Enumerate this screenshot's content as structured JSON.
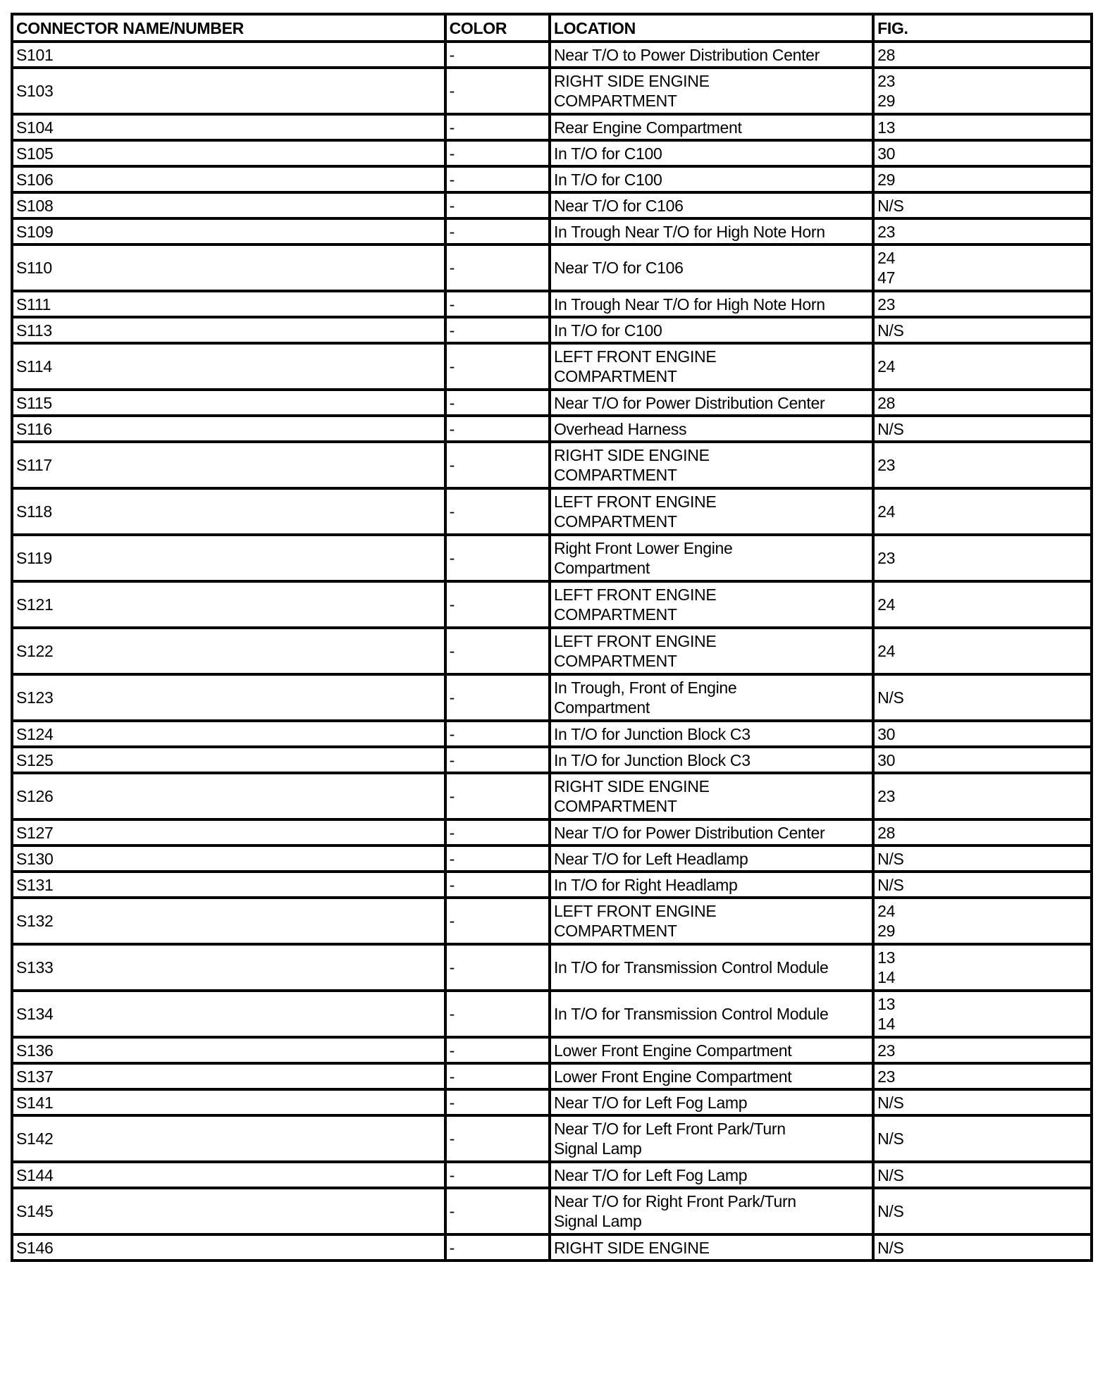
{
  "headers": [
    "CONNECTOR NAME/NUMBER",
    "COLOR",
    "LOCATION",
    "FIG."
  ],
  "rows": [
    {
      "name": "S101",
      "color": "-",
      "location": [
        "Near T/O to Power Distribution Center"
      ],
      "fig": [
        "28"
      ]
    },
    {
      "name": "S103",
      "color": "-",
      "location": [
        "RIGHT SIDE ENGINE",
        "COMPARTMENT"
      ],
      "fig": [
        "23",
        "29"
      ]
    },
    {
      "name": "S104",
      "color": "-",
      "location": [
        "Rear Engine Compartment"
      ],
      "fig": [
        "13"
      ]
    },
    {
      "name": "S105",
      "color": "-",
      "location": [
        "In T/O for C100"
      ],
      "fig": [
        "30"
      ]
    },
    {
      "name": "S106",
      "color": "-",
      "location": [
        "In T/O for C100"
      ],
      "fig": [
        "29"
      ]
    },
    {
      "name": "S108",
      "color": "-",
      "location": [
        "Near T/O for C106"
      ],
      "fig": [
        "N/S"
      ]
    },
    {
      "name": "S109",
      "color": "-",
      "location": [
        "In Trough Near T/O for High Note Horn"
      ],
      "fig": [
        "23"
      ]
    },
    {
      "name": "S110",
      "color": "-",
      "location": [
        "Near T/O for C106"
      ],
      "fig": [
        "24",
        "47"
      ]
    },
    {
      "name": "S111",
      "color": "-",
      "location": [
        "In Trough Near T/O for High Note Horn"
      ],
      "fig": [
        "23"
      ]
    },
    {
      "name": "S113",
      "color": "-",
      "location": [
        "In T/O for C100"
      ],
      "fig": [
        "N/S"
      ]
    },
    {
      "name": "S114",
      "color": "-",
      "location": [
        "LEFT FRONT ENGINE",
        "COMPARTMENT"
      ],
      "fig": [
        "24"
      ]
    },
    {
      "name": "S115",
      "color": "-",
      "location": [
        "Near T/O for Power Distribution Center"
      ],
      "fig": [
        "28"
      ]
    },
    {
      "name": "S116",
      "color": "-",
      "location": [
        "Overhead Harness"
      ],
      "fig": [
        "N/S"
      ]
    },
    {
      "name": "S117",
      "color": "-",
      "location": [
        "RIGHT SIDE ENGINE",
        "COMPARTMENT"
      ],
      "fig": [
        "23"
      ]
    },
    {
      "name": "S118",
      "color": "-",
      "location": [
        "LEFT FRONT ENGINE",
        "COMPARTMENT"
      ],
      "fig": [
        "24"
      ]
    },
    {
      "name": "S119",
      "color": "-",
      "location": [
        "Right Front Lower Engine",
        "Compartment"
      ],
      "fig": [
        "23"
      ]
    },
    {
      "name": "S121",
      "color": "-",
      "location": [
        "LEFT FRONT ENGINE",
        "COMPARTMENT"
      ],
      "fig": [
        "24"
      ]
    },
    {
      "name": "S122",
      "color": "-",
      "location": [
        "LEFT FRONT ENGINE",
        "COMPARTMENT"
      ],
      "fig": [
        "24"
      ]
    },
    {
      "name": "S123",
      "color": "-",
      "location": [
        "In Trough, Front of Engine",
        "Compartment"
      ],
      "fig": [
        "N/S"
      ]
    },
    {
      "name": "S124",
      "color": "-",
      "location": [
        "In T/O for Junction Block C3"
      ],
      "fig": [
        "30"
      ]
    },
    {
      "name": "S125",
      "color": "-",
      "location": [
        "In T/O for Junction Block C3"
      ],
      "fig": [
        "30"
      ]
    },
    {
      "name": "S126",
      "color": "-",
      "location": [
        "RIGHT SIDE ENGINE",
        "COMPARTMENT"
      ],
      "fig": [
        "23"
      ]
    },
    {
      "name": "S127",
      "color": "-",
      "location": [
        "Near T/O for Power Distribution Center"
      ],
      "fig": [
        "28"
      ]
    },
    {
      "name": "S130",
      "color": "-",
      "location": [
        "Near T/O for Left Headlamp"
      ],
      "fig": [
        "N/S"
      ]
    },
    {
      "name": "S131",
      "color": "-",
      "location": [
        "In T/O for Right Headlamp"
      ],
      "fig": [
        "N/S"
      ]
    },
    {
      "name": "S132",
      "color": "-",
      "location": [
        "LEFT FRONT ENGINE",
        "COMPARTMENT"
      ],
      "fig": [
        "24",
        "29"
      ]
    },
    {
      "name": "S133",
      "color": "-",
      "location": [
        "In T/O for Transmission Control Module"
      ],
      "fig": [
        "13",
        "14"
      ]
    },
    {
      "name": "S134",
      "color": "-",
      "location": [
        "In T/O for Transmission Control Module"
      ],
      "fig": [
        "13",
        "14"
      ]
    },
    {
      "name": "S136",
      "color": "-",
      "location": [
        "Lower Front Engine Compartment"
      ],
      "fig": [
        "23"
      ]
    },
    {
      "name": "S137",
      "color": "-",
      "location": [
        "Lower Front Engine Compartment"
      ],
      "fig": [
        "23"
      ]
    },
    {
      "name": "S141",
      "color": "-",
      "location": [
        "Near T/O for Left Fog Lamp"
      ],
      "fig": [
        "N/S"
      ]
    },
    {
      "name": "S142",
      "color": "-",
      "location": [
        "Near T/O for Left Front Park/Turn",
        "Signal Lamp"
      ],
      "fig": [
        "N/S"
      ]
    },
    {
      "name": "S144",
      "color": "-",
      "location": [
        "Near T/O for Left Fog Lamp"
      ],
      "fig": [
        "N/S"
      ]
    },
    {
      "name": "S145",
      "color": "-",
      "location": [
        "Near T/O for Right Front Park/Turn",
        "Signal Lamp"
      ],
      "fig": [
        "N/S"
      ]
    },
    {
      "name": "S146",
      "color": "-",
      "location": [
        "RIGHT SIDE ENGINE"
      ],
      "fig": [
        "N/S"
      ]
    }
  ]
}
